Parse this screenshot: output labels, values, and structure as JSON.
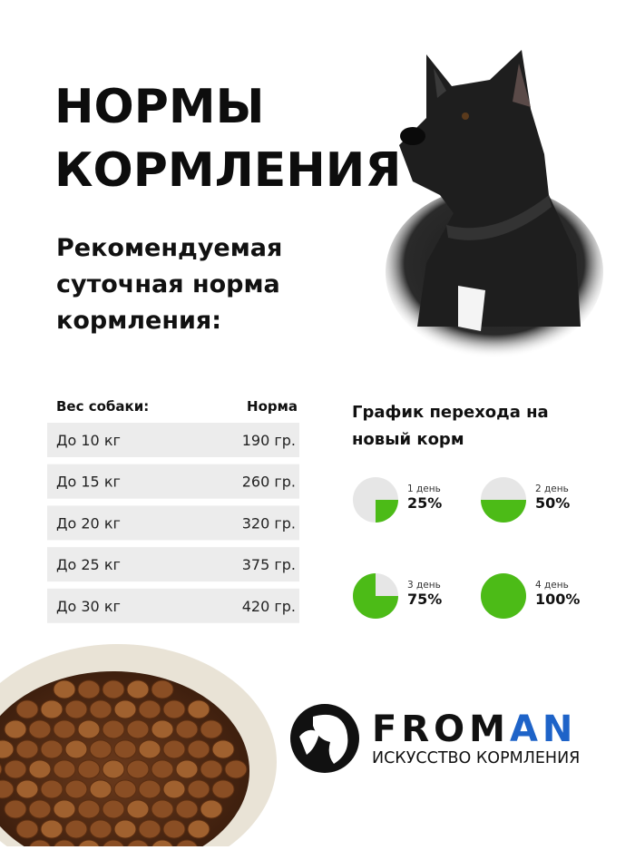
{
  "header": {
    "title_lines": [
      "НОРМЫ",
      "КОРМЛЕНИЯ"
    ],
    "subtitle_lines": [
      "Рекомендуемая",
      "суточная норма",
      "кормления:"
    ]
  },
  "table": {
    "columns": [
      "Вес собаки:",
      "Норма"
    ],
    "rows": [
      [
        "До 10 кг",
        "190 гр."
      ],
      [
        "До 15 кг",
        "260 гр."
      ],
      [
        "До 20 кг",
        "320 гр."
      ],
      [
        "До 25 кг",
        "375 гр."
      ],
      [
        "До 30 кг",
        "420 гр."
      ]
    ]
  },
  "transition": {
    "title_lines": [
      "График перехода на",
      "новый корм"
    ],
    "steps": [
      {
        "day": "1 день",
        "value": 25,
        "value_label": "25%"
      },
      {
        "day": "2 день",
        "value": 50,
        "value_label": "50%"
      },
      {
        "day": "3 день",
        "value": 75,
        "value_label": "75%"
      },
      {
        "day": "4 день",
        "value": 100,
        "value_label": "100%"
      }
    ]
  },
  "brand": {
    "name_dark": "FROM",
    "name_accent": "AN",
    "tagline": "ИСКУССТВО КОРМЛЕНИЯ"
  }
}
